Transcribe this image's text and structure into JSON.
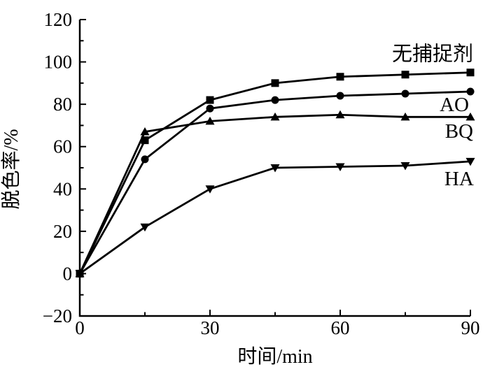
{
  "chart_data": {
    "type": "line",
    "title": "",
    "xlabel": "时间/min",
    "ylabel": "脱色率/%",
    "xlim": [
      0,
      90
    ],
    "ylim": [
      -20,
      120
    ],
    "x_major_ticks": [
      0,
      30,
      60,
      90
    ],
    "x_minor_ticks": [
      15,
      45,
      75
    ],
    "y_major_ticks": [
      -20,
      0,
      20,
      40,
      60,
      80,
      100,
      120
    ],
    "y_minor_ticks": [
      -10,
      10,
      30,
      50,
      70,
      90,
      110
    ],
    "grid": false,
    "legend_position": "inline-labels-right",
    "line_color": "#000000",
    "background_color": "#ffffff",
    "x": [
      0,
      15,
      30,
      45,
      60,
      75,
      90
    ],
    "series": [
      {
        "name": "无捕捉剂",
        "marker": "square",
        "values": [
          0,
          63,
          82,
          90,
          93,
          94,
          95
        ],
        "label_pos": [
          81.3,
          104
        ]
      },
      {
        "name": "AO",
        "marker": "circle",
        "values": [
          0,
          54,
          78,
          82,
          84,
          85,
          86
        ],
        "label_pos": [
          86.3,
          80
        ]
      },
      {
        "name": "BQ",
        "marker": "triangle-up",
        "values": [
          0,
          67,
          72,
          74,
          75,
          74,
          74
        ],
        "label_pos": [
          87.4,
          67.5
        ]
      },
      {
        "name": "HA",
        "marker": "triangle-down",
        "values": [
          0,
          22,
          40,
          50,
          50.5,
          51,
          53
        ],
        "label_pos": [
          87.4,
          45
        ]
      }
    ]
  }
}
